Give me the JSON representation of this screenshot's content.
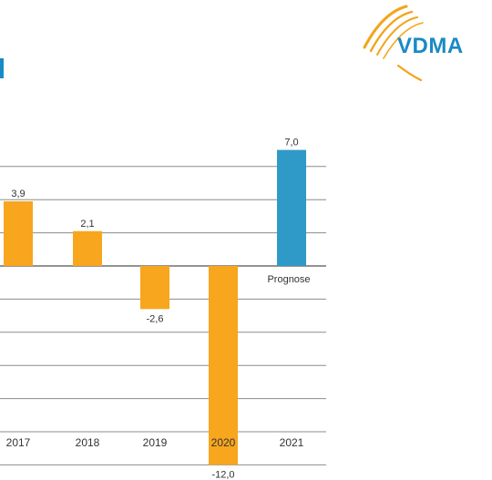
{
  "logo": {
    "text": "VDMA",
    "text_color": "#1a8ac4",
    "swoosh_color": "#f2a51a"
  },
  "colors": {
    "historic": "#f7a61e",
    "forecast": "#2f9ac8",
    "grid": "#8c8c8c",
    "zero_line": "#555555"
  },
  "chart_data": {
    "type": "bar",
    "categories": [
      "2017",
      "2018",
      "2019",
      "2020",
      "2021"
    ],
    "values": [
      3.9,
      2.1,
      -2.6,
      -12.0,
      7.0
    ],
    "value_labels": [
      "3,9",
      "2,1",
      "-2,6",
      "-12,0",
      "7,0"
    ],
    "forecast_category": "2021",
    "forecast_label": "Prognose",
    "ylim": [
      -14,
      6
    ],
    "grid": true,
    "title": "",
    "xlabel": "",
    "ylabel": ""
  }
}
